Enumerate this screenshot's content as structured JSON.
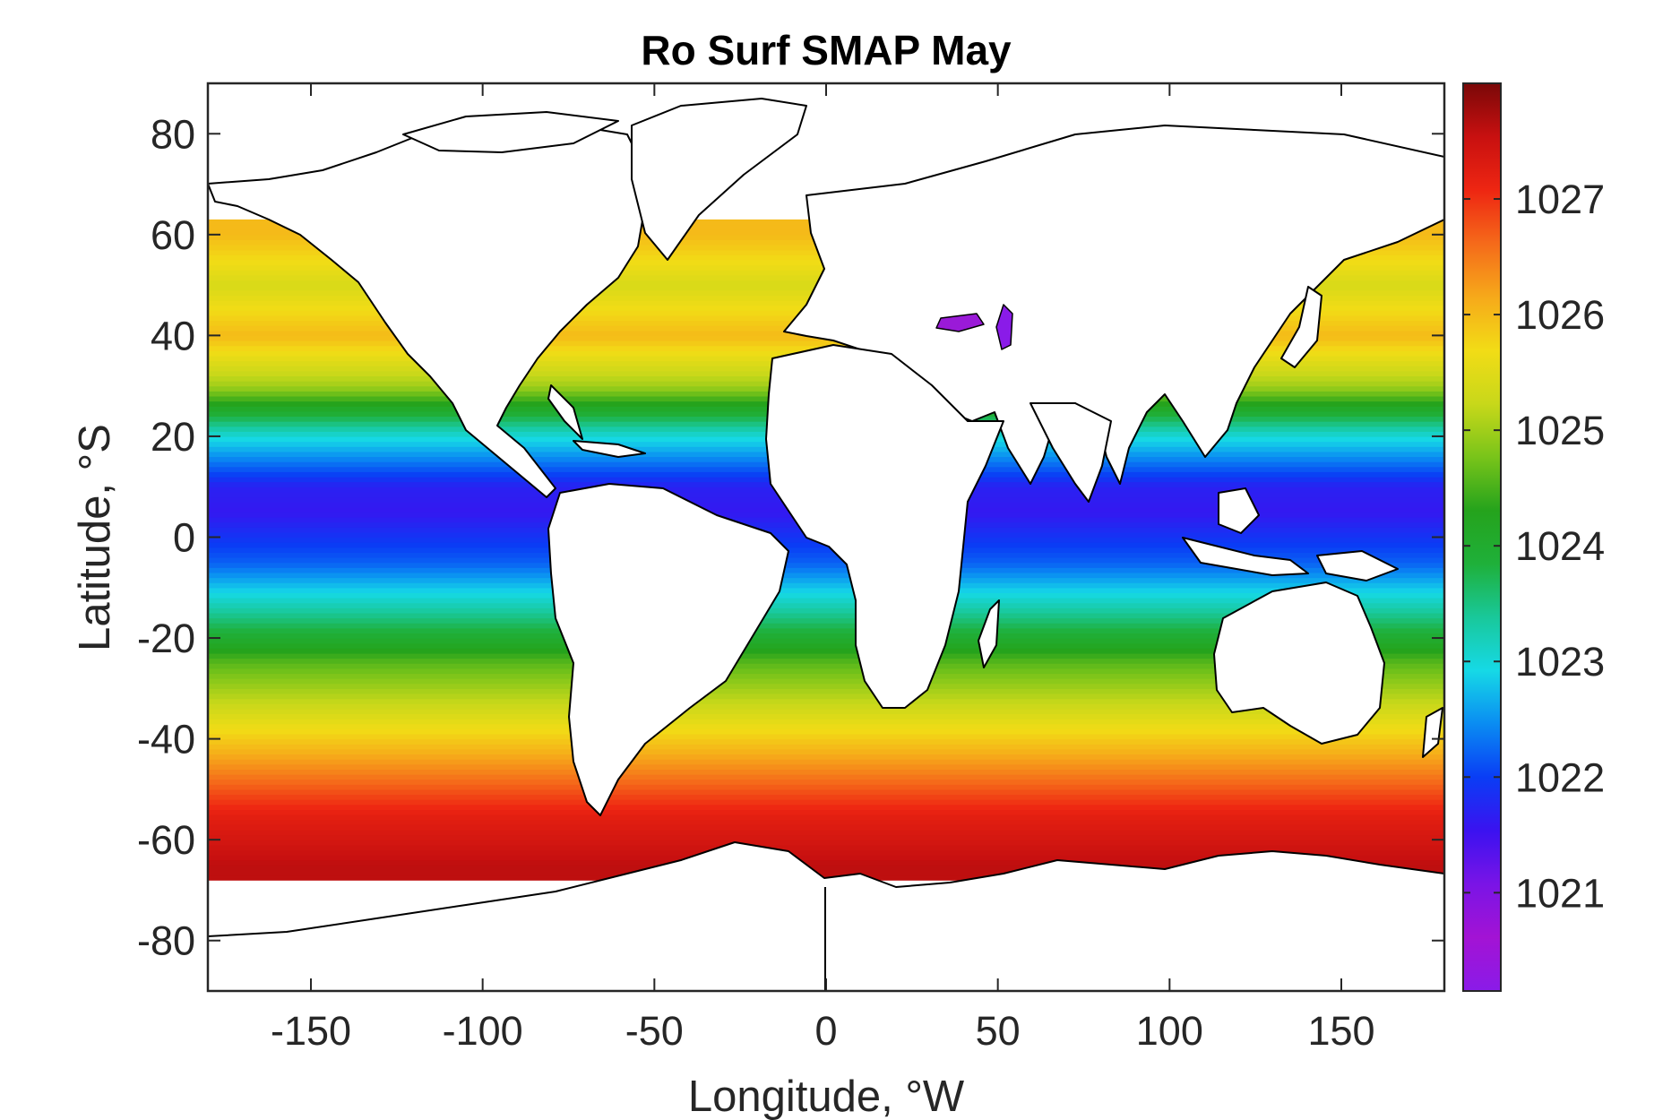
{
  "chart_data": {
    "type": "heatmap",
    "title": "Ro Surf SMAP May",
    "xlabel": "Longitude, °W",
    "ylabel": "Latitude, °S",
    "xlim": [
      -180,
      180
    ],
    "ylim": [
      -90,
      90
    ],
    "x_ticks": [
      -150,
      -100,
      -50,
      0,
      50,
      100,
      150
    ],
    "y_ticks": [
      80,
      60,
      40,
      20,
      0,
      -20,
      -40,
      -60,
      -80
    ],
    "x_tick_labels": [
      "-150",
      "-100",
      "-50",
      "0",
      "50",
      "100",
      "150"
    ],
    "y_tick_labels": [
      "80",
      "60",
      "40",
      "20",
      "0",
      "-20",
      "-40",
      "-60",
      "-80"
    ],
    "colorbar": {
      "range": [
        1020.15,
        1028
      ],
      "ticks": [
        1021,
        1022,
        1023,
        1024,
        1025,
        1026,
        1027
      ],
      "tick_labels": [
        "1021",
        "1022",
        "1023",
        "1024",
        "1025",
        "1026",
        "1027"
      ],
      "colormap": [
        "#8a1be8",
        "#a313d4",
        "#7a14e6",
        "#3b12f0",
        "#0a3df5",
        "#0a8cf2",
        "#16d9e6",
        "#19c89a",
        "#1fb03a",
        "#25a31c",
        "#79c41a",
        "#c8d81a",
        "#f2dc16",
        "#f6a91a",
        "#f56a1a",
        "#ee2612",
        "#c81010",
        "#7a0808"
      ]
    },
    "zonal_profile": {
      "lat": [
        -65,
        -55,
        -45,
        -35,
        -25,
        -15,
        -5,
        0,
        5,
        10,
        20,
        30,
        40,
        50,
        60
      ],
      "density": [
        1027.6,
        1027.2,
        1026.3,
        1025.4,
        1024.6,
        1023.4,
        1022.2,
        1021.9,
        1021.6,
        1021.7,
        1023.0,
        1025.0,
        1026.0,
        1025.4,
        1026.0
      ]
    },
    "grid": false
  }
}
